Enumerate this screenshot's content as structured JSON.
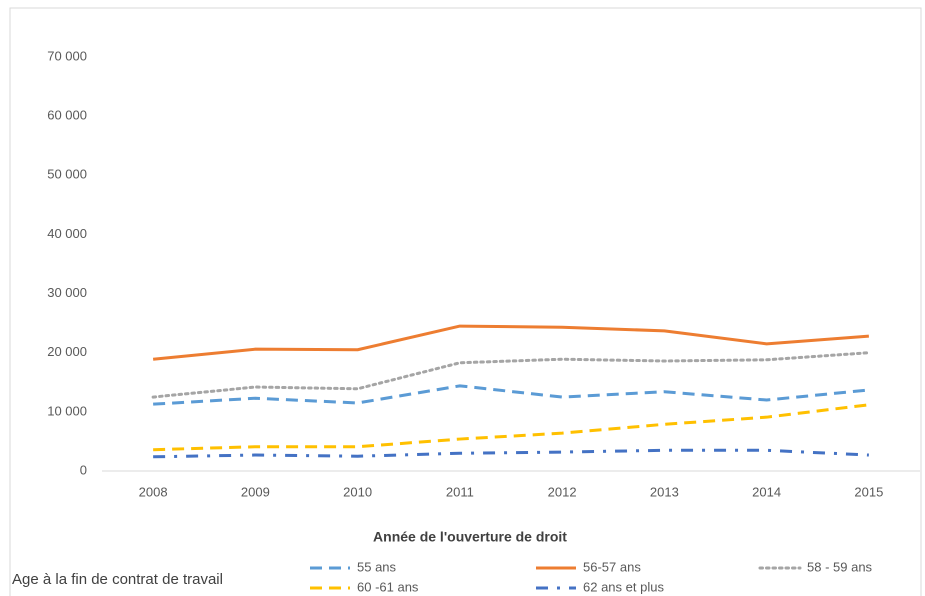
{
  "chart_data": {
    "type": "line",
    "x_label": "Année de l'ouverture de droit",
    "legend_title": "Age à la fin de contrat de travail",
    "legend": "bottom",
    "categories": [
      "2008",
      "2009",
      "2010",
      "2011",
      "2012",
      "2013",
      "2014",
      "2015"
    ],
    "series": [
      {
        "name": "55 ans",
        "color": "#5b9bd5",
        "dash": "dashed",
        "values": [
          11300,
          12300,
          11500,
          14400,
          12500,
          13400,
          12000,
          13700
        ]
      },
      {
        "name": "56-57 ans",
        "color": "#ed7d31",
        "dash": "solid",
        "values": [
          18900,
          20600,
          20500,
          24500,
          24300,
          23700,
          21500,
          22800
        ]
      },
      {
        "name": "58 - 59 ans",
        "color": "#a5a5a5",
        "dash": "dotted",
        "values": [
          12500,
          14200,
          13900,
          18300,
          18900,
          18600,
          18800,
          20000
        ]
      },
      {
        "name": "60 -61 ans",
        "color": "#ffc000",
        "dash": "dashed",
        "values": [
          3600,
          4100,
          4100,
          5400,
          6400,
          7900,
          9100,
          11200
        ]
      },
      {
        "name": "62 ans et plus",
        "color": "#4472c4",
        "dash": "dashdot",
        "values": [
          2400,
          2700,
          2500,
          3000,
          3200,
          3500,
          3500,
          2700
        ]
      }
    ],
    "ylim": [
      0,
      70000
    ],
    "yticks": [
      0,
      {
        "value": 10000,
        "label": "10 000"
      },
      {
        "value": 20000,
        "label": "20 000"
      },
      {
        "value": 30000,
        "label": "30 000"
      },
      {
        "value": 40000,
        "label": "40 000"
      },
      {
        "value": 50000,
        "label": "50 000"
      },
      {
        "value": 60000,
        "label": "60 000"
      },
      {
        "value": 70000,
        "label": "70 000"
      }
    ],
    "grid": false
  }
}
